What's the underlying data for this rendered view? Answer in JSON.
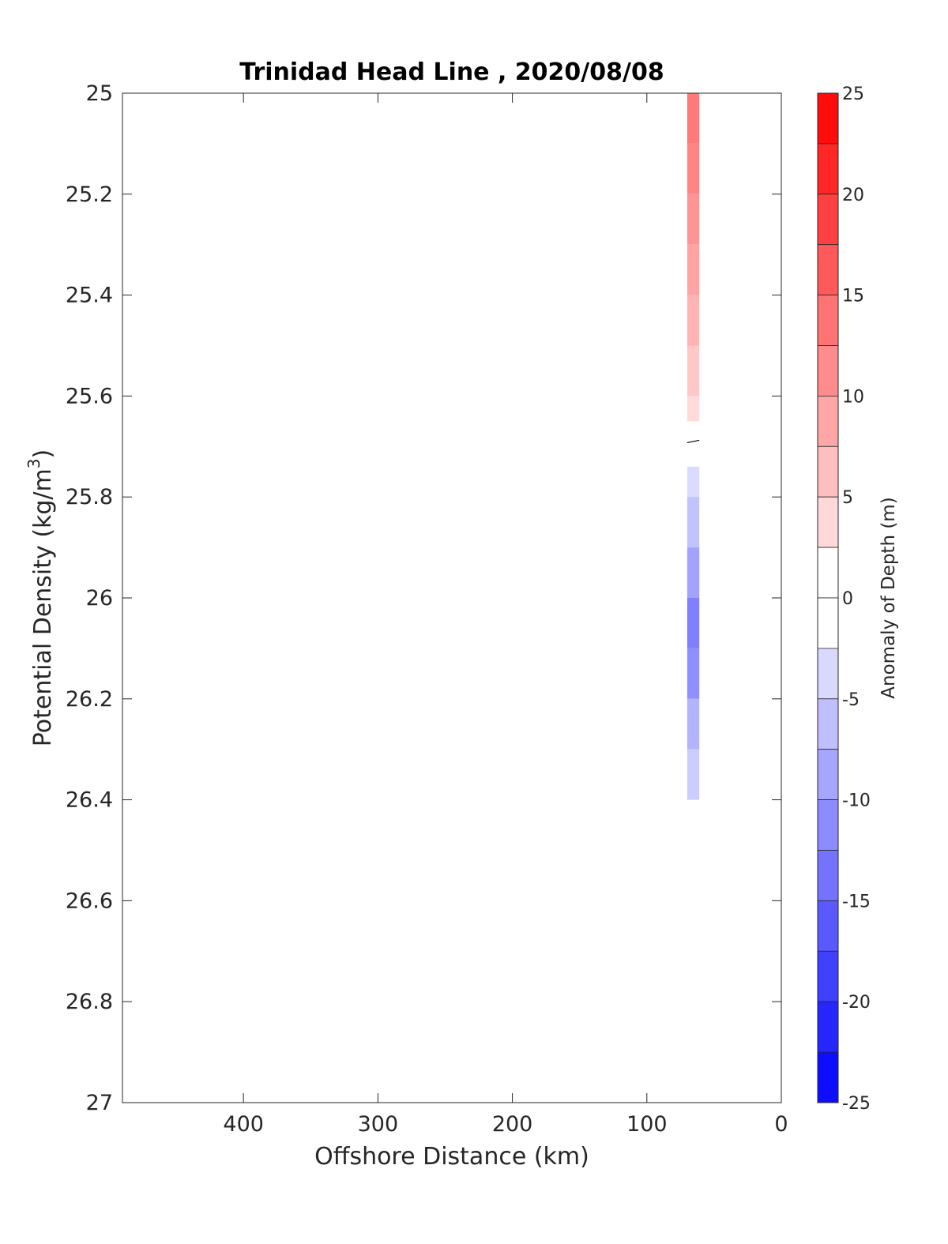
{
  "chart_data": {
    "type": "heatmap",
    "title": "Trinidad Head Line , 2020/08/08",
    "xlabel": "Offshore Distance (km)",
    "ylabel_base": "Potential Density (kg/m",
    "ylabel_sup": "3",
    "ylabel_close": ")",
    "xlim": [
      490,
      0
    ],
    "x_reversed": true,
    "x_ticks": [
      400,
      300,
      200,
      100,
      0
    ],
    "ylim": [
      25,
      27
    ],
    "y_reversed": true,
    "y_ticks": [
      "25",
      "25.2",
      "25.4",
      "25.6",
      "25.8",
      "26",
      "26.2",
      "26.4",
      "26.6",
      "26.8",
      "27"
    ],
    "grid": false,
    "colorbar": {
      "label": "Anomaly of Depth (m)",
      "range": [
        -25,
        25
      ],
      "levels": 20,
      "ticks": [
        "25",
        "20",
        "15",
        "10",
        "5",
        "0",
        "-5",
        "-10",
        "-15",
        "-20",
        "-25"
      ],
      "colormap": "blue-white-red",
      "neg_color": "#0000ff",
      "pos_color": "#ff0000",
      "zero_color": "#ffffff"
    },
    "data_column": {
      "x_range_km": [
        61,
        70
      ],
      "rows": [
        {
          "density": [
            25.0,
            25.1
          ],
          "anomaly": 13
        },
        {
          "density": [
            25.1,
            25.2
          ],
          "anomaly": 12
        },
        {
          "density": [
            25.2,
            25.3
          ],
          "anomaly": 10.5
        },
        {
          "density": [
            25.3,
            25.4
          ],
          "anomaly": 9
        },
        {
          "density": [
            25.4,
            25.5
          ],
          "anomaly": 7.5
        },
        {
          "density": [
            25.5,
            25.6
          ],
          "anomaly": 5.5
        },
        {
          "density": [
            25.6,
            25.65
          ],
          "anomaly": 3.5
        },
        {
          "density": [
            25.74,
            25.8
          ],
          "anomaly": -3.5
        },
        {
          "density": [
            25.8,
            25.9
          ],
          "anomaly": -6
        },
        {
          "density": [
            25.9,
            26.0
          ],
          "anomaly": -9
        },
        {
          "density": [
            26.0,
            26.1
          ],
          "anomaly": -12.5
        },
        {
          "density": [
            26.1,
            26.2
          ],
          "anomaly": -11
        },
        {
          "density": [
            26.2,
            26.3
          ],
          "anomaly": -7.5
        },
        {
          "density": [
            26.3,
            26.4
          ],
          "anomaly": -5
        }
      ],
      "zero_contour_density": 25.69
    }
  }
}
